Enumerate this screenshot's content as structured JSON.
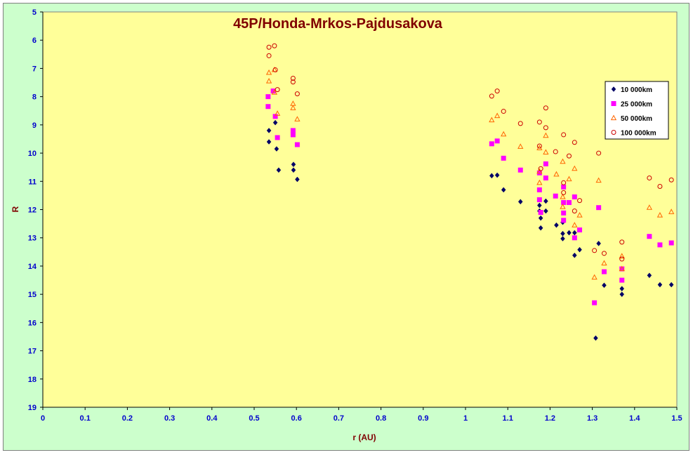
{
  "chart_data": {
    "type": "scatter",
    "title": "45P/Honda-Mrkos-Pajdusakova",
    "xlabel": "r (AU)",
    "ylabel": "R",
    "xlim": [
      0,
      1.5
    ],
    "ylim": [
      5,
      19
    ],
    "y_inverted": true,
    "x_ticks": [
      "0",
      "0.1",
      "0.2",
      "0.3",
      "0.4",
      "0.5",
      "0.6",
      "0.7",
      "0.8",
      "0.9",
      "1",
      "1.1",
      "1.2",
      "1.3",
      "1.4",
      "1.5"
    ],
    "y_ticks": [
      "5",
      "6",
      "7",
      "8",
      "9",
      "10",
      "11",
      "12",
      "13",
      "14",
      "15",
      "16",
      "17",
      "18",
      "19"
    ],
    "grid": false,
    "legend_position": "right",
    "plot_background": "#ffff99",
    "frame_background": "#ccffcc",
    "series": [
      {
        "name": "10 000km",
        "marker": "diamond",
        "color": "#000066",
        "points": [
          [
            0.535,
            9.2
          ],
          [
            0.535,
            9.6
          ],
          [
            0.55,
            8.92
          ],
          [
            0.553,
            9.85
          ],
          [
            0.558,
            10.6
          ],
          [
            0.593,
            10.4
          ],
          [
            0.593,
            10.6
          ],
          [
            0.602,
            10.93
          ],
          [
            1.062,
            10.8
          ],
          [
            1.075,
            10.78
          ],
          [
            1.09,
            11.3
          ],
          [
            1.13,
            11.72
          ],
          [
            1.175,
            11.85
          ],
          [
            1.175,
            12.05
          ],
          [
            1.178,
            12.3
          ],
          [
            1.178,
            12.65
          ],
          [
            1.19,
            11.7
          ],
          [
            1.19,
            12.05
          ],
          [
            1.215,
            12.55
          ],
          [
            1.23,
            12.45
          ],
          [
            1.23,
            12.85
          ],
          [
            1.23,
            13.03
          ],
          [
            1.245,
            12.82
          ],
          [
            1.258,
            12.82
          ],
          [
            1.258,
            13.62
          ],
          [
            1.27,
            13.42
          ],
          [
            1.308,
            16.55
          ],
          [
            1.315,
            13.2
          ],
          [
            1.328,
            14.68
          ],
          [
            1.37,
            14.8
          ],
          [
            1.37,
            15.0
          ],
          [
            1.435,
            14.33
          ],
          [
            1.46,
            14.66
          ],
          [
            1.487,
            14.66
          ]
        ]
      },
      {
        "name": "25 000km",
        "marker": "square",
        "color": "#ff00ff",
        "points": [
          [
            0.533,
            8.0
          ],
          [
            0.533,
            8.35
          ],
          [
            0.545,
            7.8
          ],
          [
            0.55,
            8.7
          ],
          [
            0.555,
            9.45
          ],
          [
            0.592,
            9.2
          ],
          [
            0.592,
            9.35
          ],
          [
            0.602,
            9.7
          ],
          [
            1.062,
            9.67
          ],
          [
            1.075,
            9.57
          ],
          [
            1.09,
            10.18
          ],
          [
            1.13,
            10.6
          ],
          [
            1.175,
            10.7
          ],
          [
            1.175,
            11.3
          ],
          [
            1.175,
            11.65
          ],
          [
            1.178,
            12.1
          ],
          [
            1.19,
            10.38
          ],
          [
            1.19,
            10.88
          ],
          [
            1.213,
            11.52
          ],
          [
            1.232,
            11.2
          ],
          [
            1.232,
            11.75
          ],
          [
            1.232,
            12.12
          ],
          [
            1.232,
            12.38
          ],
          [
            1.245,
            11.75
          ],
          [
            1.258,
            11.55
          ],
          [
            1.258,
            13.0
          ],
          [
            1.27,
            12.72
          ],
          [
            1.305,
            15.3
          ],
          [
            1.315,
            11.93
          ],
          [
            1.328,
            14.2
          ],
          [
            1.37,
            14.1
          ],
          [
            1.37,
            14.5
          ],
          [
            1.435,
            12.95
          ],
          [
            1.46,
            13.25
          ],
          [
            1.487,
            13.18
          ]
        ]
      },
      {
        "name": "50 000km",
        "marker": "triangle",
        "color": "#ff6600",
        "points": [
          [
            0.535,
            7.15
          ],
          [
            0.535,
            7.45
          ],
          [
            0.548,
            7.05
          ],
          [
            0.548,
            7.85
          ],
          [
            0.555,
            8.6
          ],
          [
            0.592,
            8.25
          ],
          [
            0.592,
            8.4
          ],
          [
            0.602,
            8.8
          ],
          [
            1.062,
            8.83
          ],
          [
            1.075,
            8.68
          ],
          [
            1.09,
            9.33
          ],
          [
            1.13,
            9.77
          ],
          [
            1.175,
            9.82
          ],
          [
            1.175,
            10.65
          ],
          [
            1.175,
            11.05
          ],
          [
            1.19,
            9.38
          ],
          [
            1.19,
            9.97
          ],
          [
            1.215,
            10.75
          ],
          [
            1.23,
            10.3
          ],
          [
            1.23,
            11.55
          ],
          [
            1.23,
            11.9
          ],
          [
            1.245,
            10.92
          ],
          [
            1.258,
            10.55
          ],
          [
            1.258,
            12.55
          ],
          [
            1.27,
            12.2
          ],
          [
            1.305,
            14.4
          ],
          [
            1.315,
            10.97
          ],
          [
            1.328,
            13.9
          ],
          [
            1.37,
            13.65
          ],
          [
            1.37,
            14.1
          ],
          [
            1.435,
            11.93
          ],
          [
            1.46,
            12.2
          ],
          [
            1.487,
            12.08
          ]
        ]
      },
      {
        "name": "100 000km",
        "marker": "circle",
        "color": "#cc0000",
        "points": [
          [
            0.535,
            6.25
          ],
          [
            0.535,
            6.55
          ],
          [
            0.548,
            6.2
          ],
          [
            0.55,
            7.05
          ],
          [
            0.555,
            7.75
          ],
          [
            0.592,
            7.35
          ],
          [
            0.592,
            7.48
          ],
          [
            0.602,
            7.9
          ],
          [
            1.062,
            7.98
          ],
          [
            1.075,
            7.8
          ],
          [
            1.09,
            8.52
          ],
          [
            1.13,
            8.95
          ],
          [
            1.175,
            8.9
          ],
          [
            1.175,
            9.75
          ],
          [
            1.178,
            10.55
          ],
          [
            1.19,
            8.4
          ],
          [
            1.19,
            9.1
          ],
          [
            1.213,
            9.95
          ],
          [
            1.232,
            9.35
          ],
          [
            1.232,
            11.05
          ],
          [
            1.232,
            11.4
          ],
          [
            1.245,
            10.1
          ],
          [
            1.258,
            9.62
          ],
          [
            1.258,
            12.05
          ],
          [
            1.27,
            11.68
          ],
          [
            1.305,
            13.45
          ],
          [
            1.315,
            10.0
          ],
          [
            1.328,
            13.55
          ],
          [
            1.37,
            13.15
          ],
          [
            1.37,
            13.75
          ],
          [
            1.435,
            10.88
          ],
          [
            1.46,
            11.18
          ],
          [
            1.487,
            10.95
          ]
        ]
      }
    ]
  }
}
